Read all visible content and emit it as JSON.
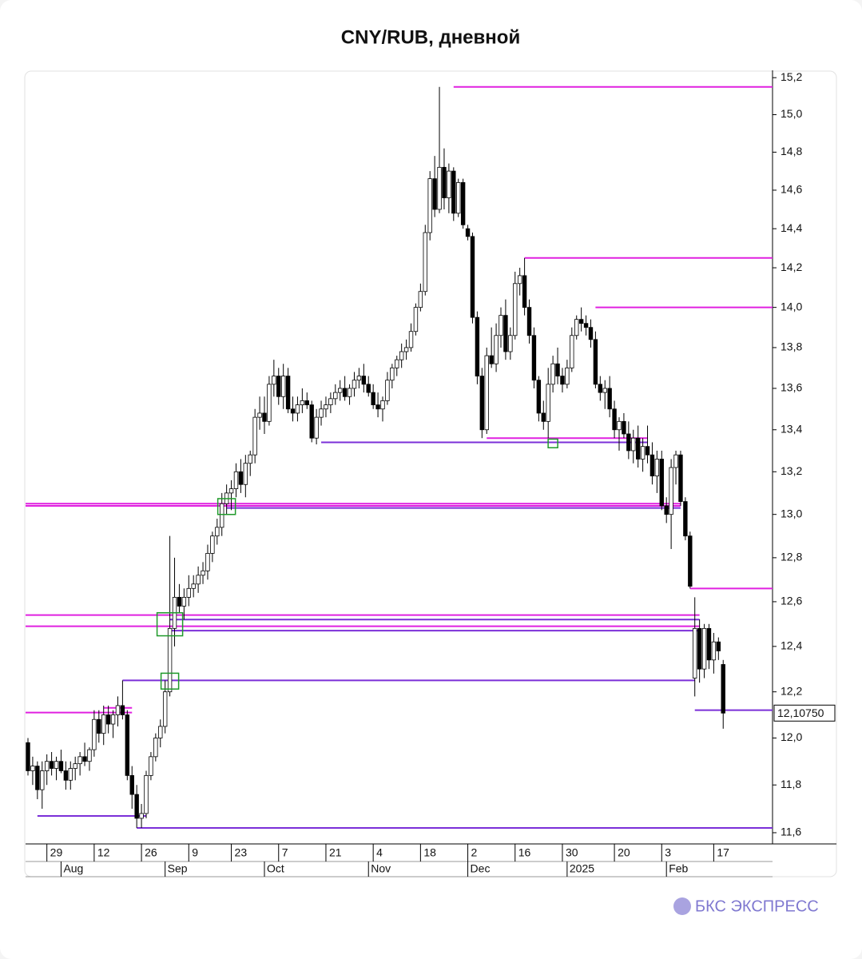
{
  "chart_data": {
    "type": "candlestick",
    "title": "CNY/RUB, дневной",
    "brand": "БКС ЭКСПРЕСС",
    "log_scale": true,
    "ylim": [
      11.58,
      15.24
    ],
    "yticks": [
      {
        "value": 11.6,
        "label": "11,6"
      },
      {
        "value": 11.8,
        "label": "11,8"
      },
      {
        "value": 12.0,
        "label": "12,0"
      },
      {
        "value": 12.2,
        "label": "12,2"
      },
      {
        "value": 12.4,
        "label": "12,4"
      },
      {
        "value": 12.6,
        "label": "12,6"
      },
      {
        "value": 12.8,
        "label": "12,8"
      },
      {
        "value": 13.0,
        "label": "13,0"
      },
      {
        "value": 13.2,
        "label": "13,2"
      },
      {
        "value": 13.4,
        "label": "13,4"
      },
      {
        "value": 13.6,
        "label": "13,6"
      },
      {
        "value": 13.8,
        "label": "13,8"
      },
      {
        "value": 14.0,
        "label": "14,0"
      },
      {
        "value": 14.2,
        "label": "14,2"
      },
      {
        "value": 14.4,
        "label": "14,4"
      },
      {
        "value": 14.6,
        "label": "14,6"
      },
      {
        "value": 14.8,
        "label": "14,8"
      },
      {
        "value": 15.0,
        "label": "15,0"
      },
      {
        "value": 15.2,
        "label": "15,2"
      }
    ],
    "last_price": {
      "value": 12.1075,
      "label": "12,10750"
    },
    "up_color": "#ffffff",
    "down_color": "#000000",
    "categories": [
      null,
      null,
      null,
      null,
      "29",
      null,
      null,
      null,
      null,
      null,
      null,
      null,
      null,
      null,
      "12",
      null,
      null,
      null,
      null,
      null,
      null,
      null,
      null,
      null,
      "26",
      null,
      null,
      null,
      null,
      null,
      null,
      null,
      null,
      null,
      "9",
      null,
      null,
      null,
      null,
      null,
      null,
      null,
      null,
      "23",
      null,
      null,
      null,
      null,
      null,
      null,
      null,
      null,
      null,
      "7",
      null,
      null,
      null,
      null,
      null,
      null,
      null,
      null,
      null,
      "21",
      null,
      null,
      null,
      null,
      null,
      null,
      null,
      null,
      null,
      "4",
      null,
      null,
      null,
      null,
      null,
      null,
      null,
      null,
      null,
      "18",
      null,
      null,
      null,
      null,
      null,
      null,
      null,
      null,
      null,
      "2",
      null,
      null,
      null,
      null,
      null,
      null,
      null,
      null,
      null,
      "16",
      null,
      null,
      null,
      null,
      null,
      null,
      null,
      null,
      null,
      "30",
      null,
      null,
      null,
      null,
      null,
      null,
      null,
      null,
      null,
      null,
      "20",
      null,
      null,
      null,
      null,
      null,
      null,
      null,
      null,
      null,
      "3",
      null,
      null,
      null,
      null,
      null,
      null,
      null,
      null,
      null,
      null,
      "17",
      null,
      null
    ],
    "months": [
      null,
      null,
      null,
      null,
      null,
      null,
      null,
      "Aug",
      null,
      null,
      null,
      null,
      null,
      null,
      null,
      null,
      null,
      null,
      null,
      null,
      null,
      null,
      null,
      null,
      null,
      null,
      null,
      null,
      null,
      "Sep",
      null,
      null,
      null,
      null,
      null,
      null,
      null,
      null,
      null,
      null,
      null,
      null,
      null,
      null,
      null,
      null,
      null,
      null,
      null,
      null,
      "Oct",
      null,
      null,
      null,
      null,
      null,
      null,
      null,
      null,
      null,
      null,
      null,
      null,
      null,
      null,
      null,
      null,
      null,
      null,
      null,
      null,
      null,
      "Nov",
      null,
      null,
      null,
      null,
      null,
      null,
      null,
      null,
      null,
      null,
      null,
      null,
      null,
      null,
      null,
      null,
      null,
      null,
      null,
      null,
      "Dec",
      null,
      null,
      null,
      null,
      null,
      null,
      null,
      null,
      null,
      null,
      null,
      null,
      null,
      null,
      null,
      null,
      null,
      null,
      null,
      null,
      "2025",
      null,
      null,
      null,
      null,
      null,
      null,
      null,
      null,
      null,
      null,
      null,
      null,
      null,
      null,
      null,
      null,
      null,
      null,
      null,
      null,
      "Feb",
      null,
      null,
      null,
      null,
      null,
      null,
      null,
      null,
      null,
      null,
      null,
      null
    ],
    "open": [
      11.98,
      11.86,
      11.88,
      11.78,
      11.86,
      11.9,
      11.87,
      11.9,
      11.86,
      11.82,
      11.87,
      11.89,
      11.92,
      11.9,
      11.95,
      12.08,
      12.02,
      12.1,
      12.06,
      12.1,
      12.14,
      12.1,
      11.84,
      11.76,
      11.66,
      11.68,
      11.84,
      11.92,
      12.0,
      12.05,
      12.2,
      12.48,
      12.62,
      12.58,
      12.62,
      12.66,
      12.68,
      12.72,
      12.74,
      12.82,
      12.9,
      12.94,
      13.05,
      13.1,
      13.12,
      13.2,
      13.14,
      13.24,
      13.28,
      13.46,
      13.48,
      13.44,
      13.62,
      13.66,
      13.56,
      13.66,
      13.5,
      13.48,
      13.52,
      13.54,
      13.52,
      13.36,
      13.46,
      13.5,
      13.52,
      13.55,
      13.58,
      13.6,
      13.56,
      13.6,
      13.64,
      13.66,
      13.62,
      13.58,
      13.52,
      13.5,
      13.54,
      13.64,
      13.7,
      13.74,
      13.78,
      13.8,
      13.88,
      14.0,
      14.08,
      14.38,
      14.66,
      14.5,
      14.72,
      14.56,
      14.7,
      14.48,
      14.64,
      14.4,
      14.36,
      13.95,
      13.66,
      13.4,
      13.76,
      13.72,
      13.86,
      13.96,
      13.78,
      13.86,
      14.12,
      14.16,
      14.0,
      13.86,
      13.64,
      13.48,
      13.44,
      13.62,
      13.72,
      13.66,
      13.62,
      13.7,
      13.86,
      13.94,
      13.92,
      13.9,
      13.84,
      13.62,
      13.58,
      13.6,
      13.5,
      13.4,
      13.44,
      13.38,
      13.3,
      13.36,
      13.26,
      13.32,
      13.28,
      13.18,
      13.26,
      13.04,
      13.0,
      13.22,
      13.28,
      13.06,
      12.9,
      12.26,
      12.48,
      12.3,
      12.48,
      12.34,
      12.42,
      12.32
    ],
    "high": [
      12.0,
      11.92,
      11.9,
      11.9,
      11.93,
      11.94,
      11.92,
      11.95,
      11.9,
      11.9,
      11.92,
      11.94,
      11.98,
      11.96,
      12.12,
      12.12,
      12.14,
      12.14,
      12.12,
      12.18,
      12.25,
      12.12,
      11.88,
      11.8,
      11.72,
      11.86,
      11.94,
      12.02,
      12.08,
      12.25,
      12.9,
      12.8,
      12.68,
      12.66,
      12.72,
      12.72,
      12.76,
      12.78,
      12.86,
      12.92,
      12.98,
      13.1,
      13.14,
      13.16,
      13.24,
      13.26,
      13.28,
      13.3,
      13.5,
      13.56,
      13.56,
      13.66,
      13.74,
      13.7,
      13.72,
      13.7,
      13.56,
      13.56,
      13.6,
      13.58,
      13.54,
      13.5,
      13.54,
      13.56,
      13.58,
      13.62,
      13.64,
      13.66,
      13.62,
      13.68,
      13.7,
      13.72,
      13.66,
      13.62,
      13.58,
      13.56,
      13.68,
      13.72,
      13.76,
      13.82,
      13.84,
      13.92,
      14.02,
      14.12,
      14.42,
      14.7,
      14.78,
      15.15,
      14.82,
      14.74,
      14.72,
      14.66,
      14.66,
      14.42,
      14.38,
      13.98,
      13.7,
      13.8,
      13.9,
      13.92,
      14.0,
      14.04,
      13.9,
      14.18,
      14.2,
      14.25,
      14.04,
      13.9,
      13.66,
      13.54,
      13.7,
      13.76,
      13.8,
      13.7,
      13.74,
      13.9,
      13.96,
      14.0,
      13.96,
      13.94,
      13.88,
      13.66,
      13.64,
      13.66,
      13.54,
      13.46,
      13.48,
      13.44,
      13.4,
      13.42,
      13.36,
      13.42,
      13.34,
      13.3,
      13.3,
      13.08,
      13.26,
      13.3,
      13.3,
      13.08,
      12.92,
      12.62,
      12.52,
      12.5,
      12.5,
      12.46,
      12.44,
      12.34
    ],
    "low": [
      11.84,
      11.8,
      11.74,
      11.7,
      11.8,
      11.84,
      11.82,
      11.85,
      11.78,
      11.78,
      11.82,
      11.84,
      11.88,
      11.86,
      11.92,
      11.98,
      11.97,
      12.02,
      12.0,
      12.05,
      12.08,
      11.82,
      11.7,
      11.62,
      11.62,
      11.66,
      11.82,
      11.9,
      11.96,
      12.02,
      12.18,
      12.4,
      12.55,
      12.52,
      12.58,
      12.62,
      12.64,
      12.68,
      12.7,
      12.78,
      12.86,
      12.9,
      13.0,
      13.02,
      13.08,
      13.1,
      13.08,
      13.18,
      13.24,
      13.4,
      13.38,
      13.42,
      13.56,
      13.52,
      13.5,
      13.48,
      13.44,
      13.44,
      13.48,
      13.5,
      13.34,
      13.33,
      13.42,
      13.46,
      13.48,
      13.52,
      13.54,
      13.54,
      13.52,
      13.56,
      13.6,
      13.58,
      13.56,
      13.5,
      13.46,
      13.44,
      13.52,
      13.6,
      13.66,
      13.7,
      13.74,
      13.78,
      13.86,
      13.98,
      14.06,
      14.34,
      14.46,
      14.48,
      14.5,
      14.48,
      14.44,
      14.46,
      14.4,
      14.34,
      13.92,
      13.62,
      13.36,
      13.38,
      13.7,
      13.68,
      13.8,
      13.74,
      13.74,
      13.84,
      14.06,
      13.96,
      13.82,
      13.6,
      13.44,
      13.4,
      13.36,
      13.58,
      13.62,
      13.58,
      13.6,
      13.68,
      13.84,
      13.88,
      13.86,
      13.8,
      13.6,
      13.54,
      13.5,
      13.46,
      13.36,
      13.3,
      13.36,
      13.26,
      13.24,
      13.22,
      13.2,
      13.24,
      13.14,
      13.1,
      13.02,
      12.96,
      12.84,
      13.14,
      13.04,
      12.88,
      12.66,
      12.18,
      12.24,
      12.26,
      12.3,
      12.28,
      12.34,
      12.04
    ],
    "close": [
      11.86,
      11.88,
      11.78,
      11.86,
      11.9,
      11.87,
      11.9,
      11.86,
      11.82,
      11.87,
      11.89,
      11.92,
      11.9,
      11.95,
      12.08,
      12.02,
      12.1,
      12.06,
      12.1,
      12.14,
      12.1,
      11.84,
      11.76,
      11.66,
      11.68,
      11.84,
      11.92,
      12.0,
      12.05,
      12.2,
      12.48,
      12.62,
      12.58,
      12.62,
      12.66,
      12.68,
      12.72,
      12.74,
      12.82,
      12.9,
      12.94,
      13.05,
      13.1,
      13.12,
      13.2,
      13.14,
      13.24,
      13.28,
      13.46,
      13.48,
      13.44,
      13.62,
      13.66,
      13.56,
      13.66,
      13.5,
      13.48,
      13.52,
      13.54,
      13.52,
      13.36,
      13.46,
      13.5,
      13.52,
      13.55,
      13.58,
      13.6,
      13.56,
      13.6,
      13.64,
      13.66,
      13.62,
      13.58,
      13.52,
      13.5,
      13.54,
      13.64,
      13.7,
      13.74,
      13.78,
      13.8,
      13.88,
      14.0,
      14.08,
      14.38,
      14.66,
      14.5,
      14.72,
      14.56,
      14.7,
      14.48,
      14.64,
      14.42,
      14.36,
      13.95,
      13.66,
      13.4,
      13.76,
      13.72,
      13.86,
      13.96,
      13.78,
      13.86,
      14.12,
      14.16,
      14.0,
      13.86,
      13.64,
      13.48,
      13.44,
      13.62,
      13.72,
      13.66,
      13.62,
      13.7,
      13.86,
      13.94,
      13.92,
      13.9,
      13.84,
      13.62,
      13.58,
      13.6,
      13.5,
      13.4,
      13.44,
      13.38,
      13.3,
      13.36,
      13.26,
      13.32,
      13.28,
      13.18,
      13.26,
      13.04,
      13.0,
      13.22,
      13.28,
      13.06,
      12.9,
      12.67,
      12.48,
      12.3,
      12.48,
      12.34,
      12.42,
      12.38,
      12.1075
    ],
    "levels": [
      {
        "value": 15.15,
        "from": 90,
        "color": "#e020e0"
      },
      {
        "value": 14.25,
        "from": 105,
        "color": "#e020e0"
      },
      {
        "value": 14.0,
        "from": 120,
        "color": "#e020e0"
      },
      {
        "value": 13.36,
        "from": 97,
        "to": 131,
        "color": "#e020e0"
      },
      {
        "value": 13.34,
        "from": 62,
        "to": 131,
        "color": "#7b2fd8"
      },
      {
        "value": 13.05,
        "from": 0,
        "to": 138,
        "color": "#e020e0"
      },
      {
        "value": 13.04,
        "from": 0,
        "to": 138,
        "color": "#e020e0"
      },
      {
        "value": 13.03,
        "from": 42,
        "to": 138,
        "color": "#7b2fd8"
      },
      {
        "value": 12.66,
        "from": 140,
        "color": "#e020e0"
      },
      {
        "value": 12.54,
        "from": 0,
        "to": 142,
        "color": "#e020e0"
      },
      {
        "value": 12.52,
        "from": 30,
        "to": 142,
        "color": "#7b2fd8"
      },
      {
        "value": 12.49,
        "from": 0,
        "to": 142,
        "color": "#e020e0"
      },
      {
        "value": 12.47,
        "from": 30,
        "to": 142,
        "color": "#7b2fd8"
      },
      {
        "value": 12.25,
        "from": 20,
        "to": 141,
        "color": "#7b2fd8"
      },
      {
        "value": 12.13,
        "from": 16,
        "to": 22,
        "color": "#e020e0"
      },
      {
        "value": 12.11,
        "from": 0,
        "to": 22,
        "color": "#e020e0"
      },
      {
        "value": 12.12,
        "from": 141,
        "color": "#7b2fd8"
      },
      {
        "value": 11.67,
        "from": 2,
        "to": 25,
        "color": "#7b2fd8"
      },
      {
        "value": 11.62,
        "from": 23,
        "color": "#7b2fd8"
      }
    ],
    "markers": [
      {
        "index": 42,
        "value": 13.04
      },
      {
        "index": 30,
        "value": 12.5
      },
      {
        "index": 30,
        "value": 12.25
      },
      {
        "index": 111,
        "value": 13.34
      }
    ]
  }
}
